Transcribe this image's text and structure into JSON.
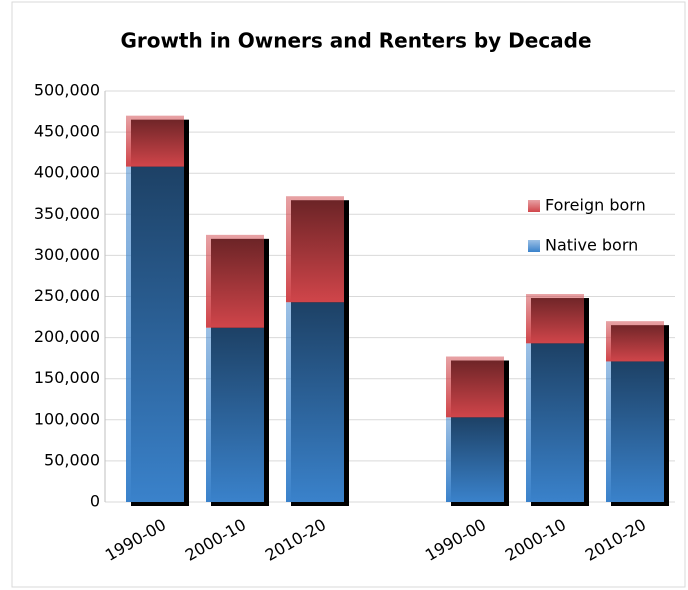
{
  "chart_data": {
    "type": "stacked_bar",
    "title": "Growth in Owners and Renters by Decade",
    "categories": [
      "1990-00",
      "2000-10",
      "2010-20",
      null,
      "1990-00",
      "2000-10",
      "2010-20"
    ],
    "series": [
      {
        "name": "Native born",
        "color": "#3a82cb",
        "values": [
          408000,
          212000,
          243000,
          null,
          103000,
          193000,
          171000
        ]
      },
      {
        "name": "Foreign born",
        "color": "#d0454a",
        "values": [
          62000,
          113000,
          129000,
          null,
          74000,
          60000,
          49000
        ]
      }
    ],
    "ylim": [
      0,
      500000
    ],
    "yticks": [
      {
        "value": 0,
        "label": "0"
      },
      {
        "value": 50000,
        "label": "50,000"
      },
      {
        "value": 100000,
        "label": "100,000"
      },
      {
        "value": 150000,
        "label": "150,000"
      },
      {
        "value": 200000,
        "label": "200,000"
      },
      {
        "value": 250000,
        "label": "250,000"
      },
      {
        "value": 300000,
        "label": "300,000"
      },
      {
        "value": 350000,
        "label": "350,000"
      },
      {
        "value": 400000,
        "label": "400,000"
      },
      {
        "value": 450000,
        "label": "450,000"
      },
      {
        "value": 500000,
        "label": "500,000"
      }
    ],
    "grid": true,
    "legend": "right"
  }
}
